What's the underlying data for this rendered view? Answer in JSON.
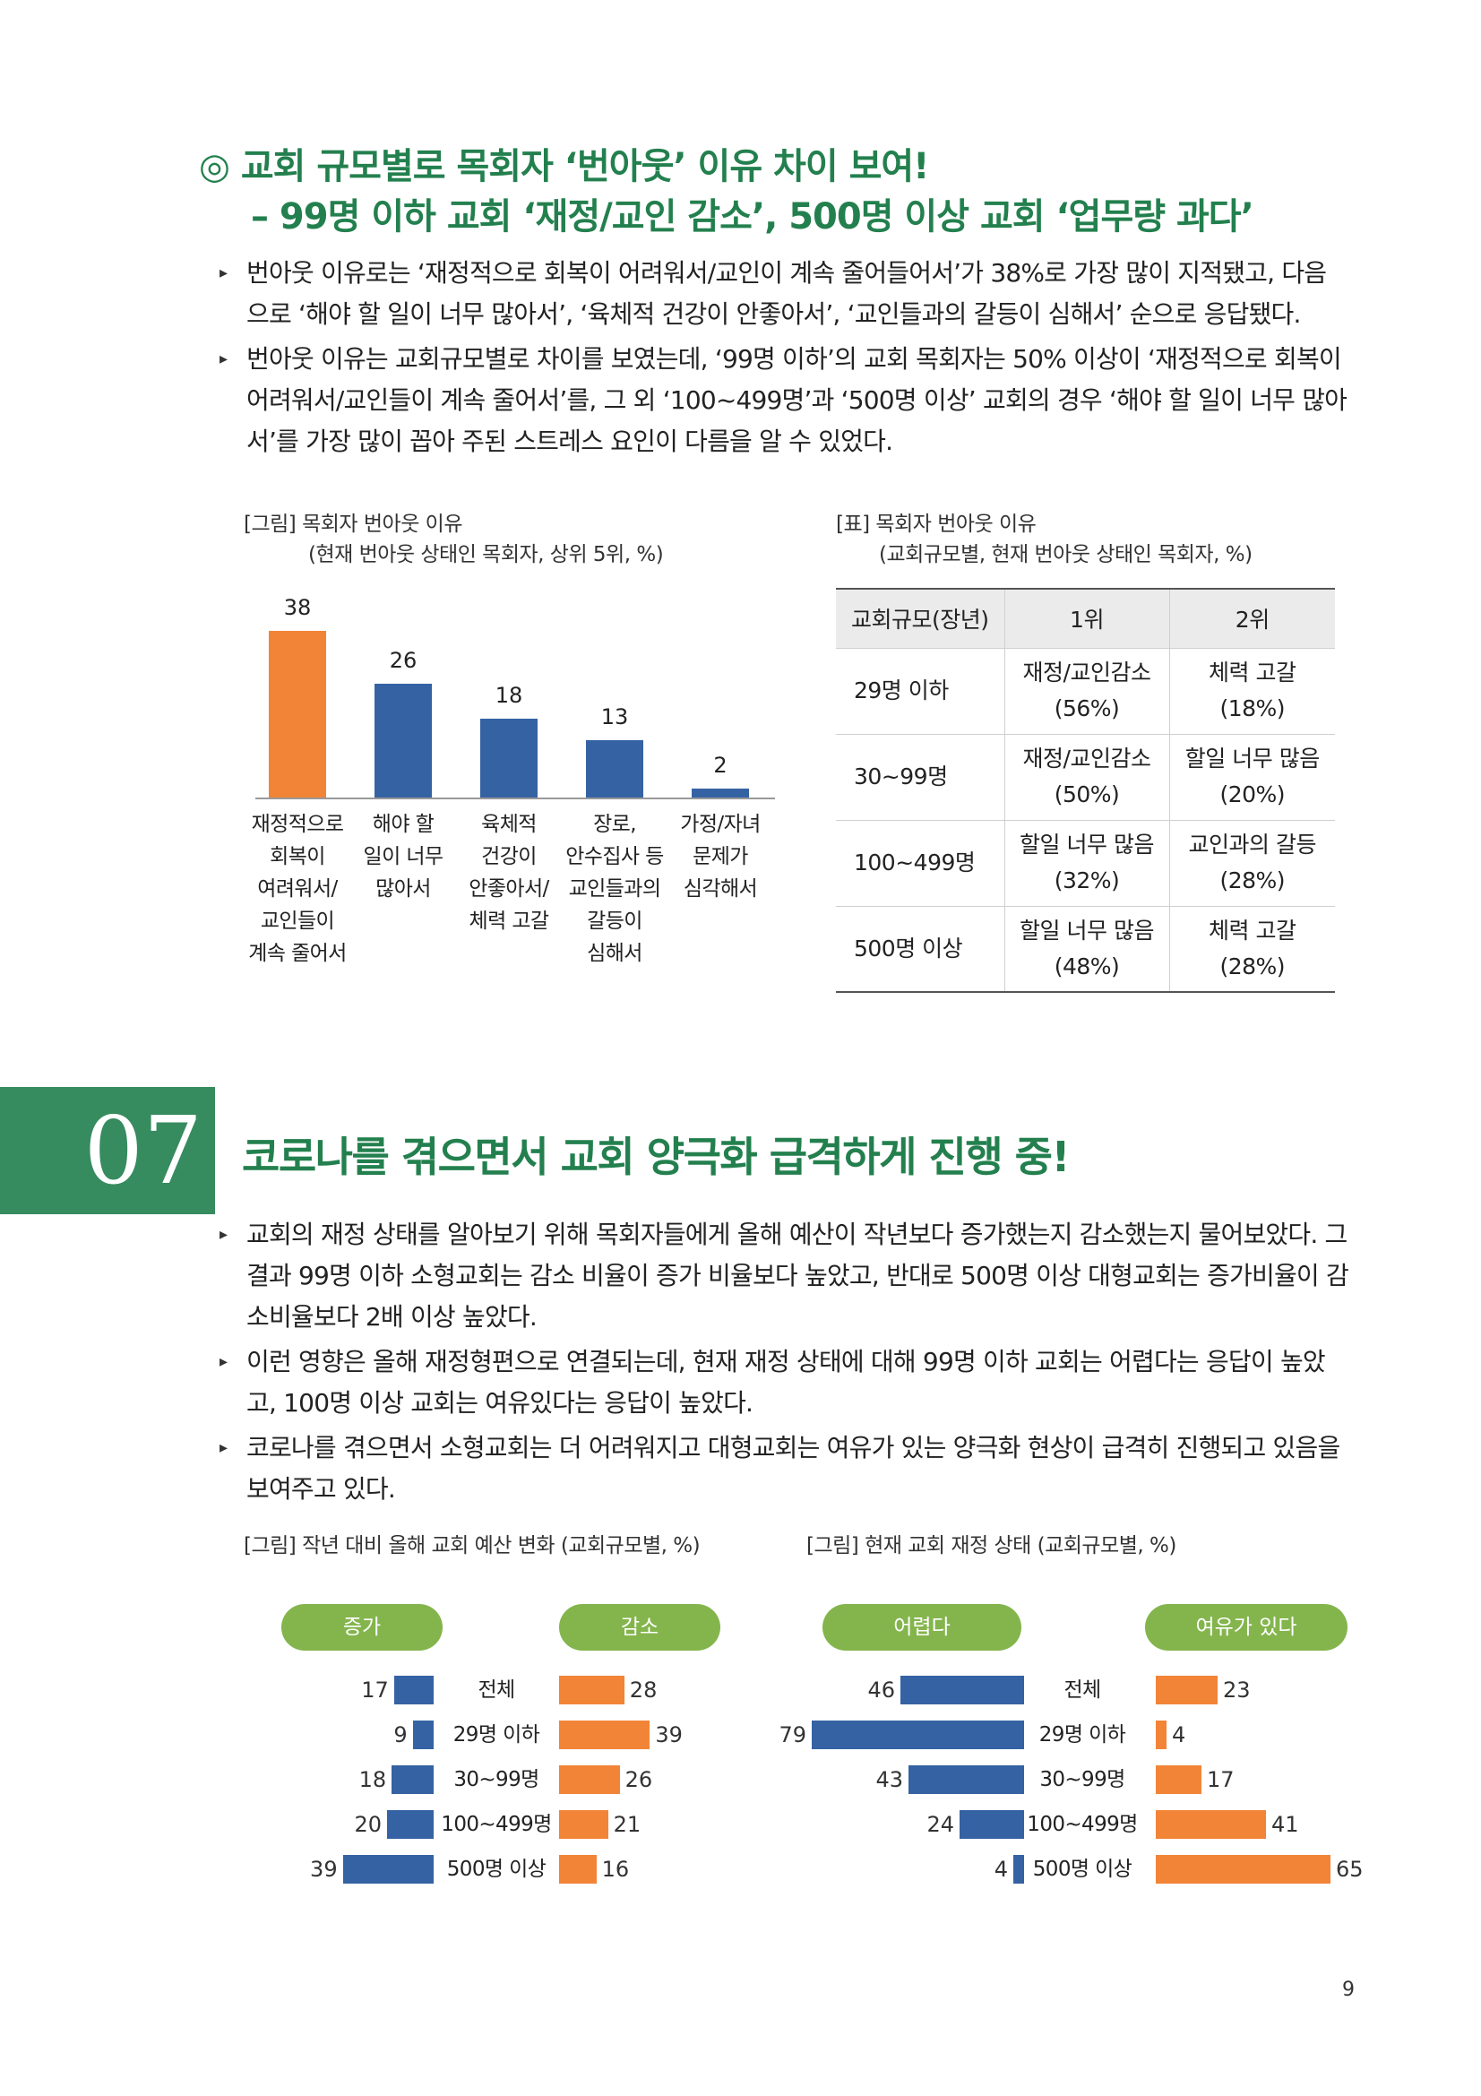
{
  "section6": {
    "heading_line1": "◎ 교회 규모별로 목회자 ‘번아웃’ 이유 차이 보여!",
    "heading_line2": "– 99명 이하 교회 ‘재정/교인 감소’, 500명 이상 교회 ‘업무량 과다’",
    "bullets": [
      "번아웃 이유로는 ‘재정적으로 회복이 어려워서/교인이 계속 줄어들어서’가 38%로 가장 많이 지적됐고, 다음으로 ‘해야 할 일이 너무 많아서’, ‘육체적 건강이 안좋아서’, ‘교인들과의 갈등이 심해서’ 순으로 응답됐다.",
      "번아웃 이유는 교회규모별로 차이를 보였는데, ‘99명 이하’의 교회 목회자는 50% 이상이 ‘재정적으로 회복이 어려워서/교인들이 계속 줄어서’를, 그 외 ‘100~499명’과 ‘500명 이상’ 교회의 경우 ‘해야 할 일이 너무 많아서’를 가장 많이 꼽아 주된 스트레스 요인이 다름을 알 수 있었다."
    ],
    "chart_caption_line1": "[그림] 목회자 번아웃 이유",
    "chart_caption_line2": "(현재 번아웃 상태인 목회자, 상위 5위, %)",
    "table_caption_line1": "[표] 목회자 번아웃 이유",
    "table_caption_line2": "(교회규모별, 현재 번아웃 상태인 목회자, %)",
    "table": {
      "headers": [
        "교회규모(장년)",
        "1위",
        "2위"
      ],
      "rows": [
        {
          "size": "29명 이하",
          "r1_text": "재정/교인감소",
          "r1_pct": "(56%)",
          "r2_text": "체력 고갈",
          "r2_pct": "(18%)"
        },
        {
          "size": "30~99명",
          "r1_text": "재정/교인감소",
          "r1_pct": "(50%)",
          "r2_text": "할일 너무 많음",
          "r2_pct": "(20%)"
        },
        {
          "size": "100~499명",
          "r1_text": "할일 너무 많음",
          "r1_pct": "(32%)",
          "r2_text": "교인과의 갈등",
          "r2_pct": "(28%)"
        },
        {
          "size": "500명 이상",
          "r1_text": "할일 너무 많음",
          "r1_pct": "(48%)",
          "r2_text": "체력 고갈",
          "r2_pct": "(28%)"
        }
      ]
    }
  },
  "section7": {
    "number": "07",
    "title": "코로나를 겪으면서 교회 양극화 급격하게 진행 중!",
    "bullets": [
      "교회의 재정 상태를 알아보기 위해 목회자들에게 올해 예산이 작년보다 증가했는지 감소했는지 물어보았다. 그 결과 99명 이하 소형교회는 감소 비율이 증가 비율보다 높았고, 반대로 500명 이상 대형교회는 증가비율이 감소비율보다 2배 이상 높았다.",
      "이런 영향은 올해 재정형편으로 연결되는데, 현재 재정 상태에 대해 99명 이하 교회는 어렵다는 응답이 높았고, 100명 이상 교회는 여유있다는 응답이 높았다.",
      "코로나를 겪으면서 소형교회는 더 어려워지고 대형교회는 여유가 있는 양극화 현상이 급격히 진행되고 있음을 보여주고 있다."
    ],
    "chart1_caption": "[그림] 작년 대비 올해 교회 예산 변화 (교회규모별, %)",
    "chart2_caption": "[그림] 현재 교회 재정 상태 (교회규모별, %)"
  },
  "chart_data": [
    {
      "type": "bar",
      "categories": [
        [
          "재정적으로",
          "회복이",
          "여려워서/",
          "교인들이",
          "계속 줄어서"
        ],
        [
          "해야 할",
          "일이 너무",
          "많아서"
        ],
        [
          "육체적",
          "건강이",
          "안좋아서/",
          "체력 고갈"
        ],
        [
          "장로,",
          "안수집사 등",
          "교인들과의",
          "갈등이",
          "심해서"
        ],
        [
          "가정/자녀",
          "문제가",
          "심각해서"
        ]
      ],
      "values": [
        38,
        26,
        18,
        13,
        2
      ],
      "colors": [
        "#f28438",
        "#3562a3",
        "#3562a3",
        "#3562a3",
        "#3562a3"
      ],
      "ylim": [
        0,
        40
      ]
    },
    {
      "type": "bar",
      "orientation": "horizontal-butterfly",
      "categories": [
        "전체",
        "29명 이하",
        "30~99명",
        "100~499명",
        "500명 이상"
      ],
      "series": [
        {
          "name": "증가",
          "values": [
            17,
            9,
            18,
            20,
            39
          ],
          "color": "#3562a3"
        },
        {
          "name": "감소",
          "values": [
            28,
            39,
            26,
            21,
            16
          ],
          "color": "#f28438"
        }
      ]
    },
    {
      "type": "bar",
      "orientation": "horizontal-butterfly",
      "categories": [
        "전체",
        "29명 이하",
        "30~99명",
        "100~499명",
        "500명 이상"
      ],
      "series": [
        {
          "name": "어렵다",
          "values": [
            46,
            79,
            43,
            24,
            4
          ],
          "color": "#3562a3"
        },
        {
          "name": "여유가 있다",
          "values": [
            23,
            4,
            17,
            41,
            65
          ],
          "color": "#f28438"
        }
      ]
    }
  ],
  "page_number": "9"
}
